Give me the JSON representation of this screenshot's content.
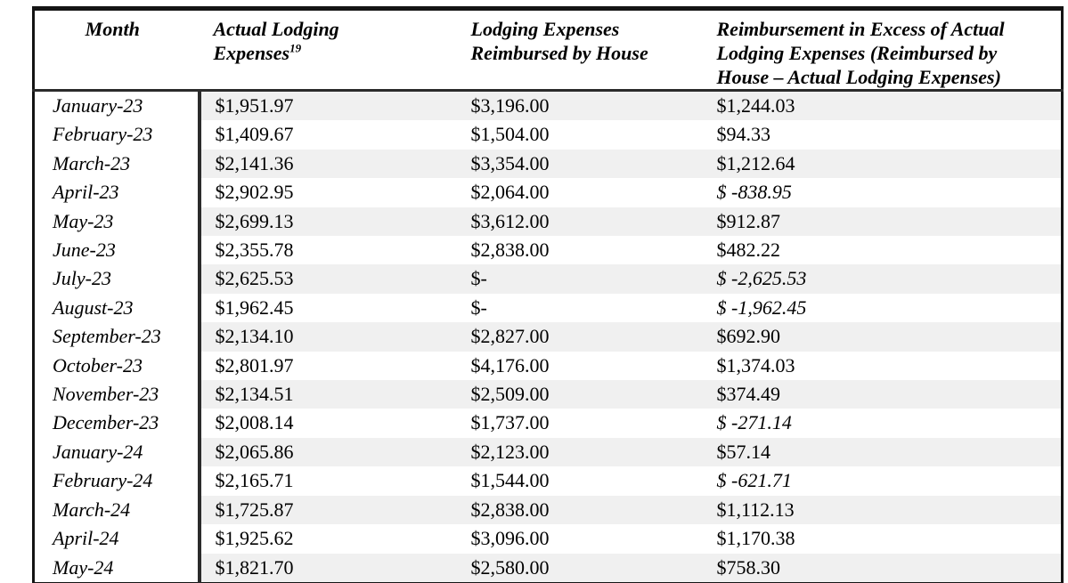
{
  "table": {
    "headers": [
      {
        "text": "Month"
      },
      {
        "text": "Actual Lodging\nExpenses",
        "footnote": "19"
      },
      {
        "text": "Lodging Expenses\nReimbursed by House"
      },
      {
        "text": "Reimbursement in Excess of Actual\nLodging Expenses (Reimbursed by\nHouse – Actual Lodging Expenses)"
      }
    ],
    "rows": [
      {
        "month": "January-23",
        "actual": "$1,951.97",
        "reimbursed": "$3,196.00",
        "excess": "$1,244.03",
        "excess_negative": false
      },
      {
        "month": "February-23",
        "actual": "$1,409.67",
        "reimbursed": "$1,504.00",
        "excess": "$94.33",
        "excess_negative": false
      },
      {
        "month": "March-23",
        "actual": "$2,141.36",
        "reimbursed": "$3,354.00",
        "excess": "$1,212.64",
        "excess_negative": false
      },
      {
        "month": "April-23",
        "actual": "$2,902.95",
        "reimbursed": "$2,064.00",
        "excess": "$ -838.95",
        "excess_negative": true
      },
      {
        "month": "May-23",
        "actual": "$2,699.13",
        "reimbursed": "$3,612.00",
        "excess": "$912.87",
        "excess_negative": false
      },
      {
        "month": "June-23",
        "actual": "$2,355.78",
        "reimbursed": "$2,838.00",
        "excess": "$482.22",
        "excess_negative": false
      },
      {
        "month": "July-23",
        "actual": "$2,625.53",
        "reimbursed": "$-",
        "excess": "$ -2,625.53",
        "excess_negative": true
      },
      {
        "month": "August-23",
        "actual": "$1,962.45",
        "reimbursed": "$-",
        "excess": "$ -1,962.45",
        "excess_negative": true
      },
      {
        "month": "September-23",
        "actual": "$2,134.10",
        "reimbursed": "$2,827.00",
        "excess": "$692.90",
        "excess_negative": false
      },
      {
        "month": "October-23",
        "actual": "$2,801.97",
        "reimbursed": "$4,176.00",
        "excess": "$1,374.03",
        "excess_negative": false
      },
      {
        "month": "November-23",
        "actual": "$2,134.51",
        "reimbursed": "$2,509.00",
        "excess": "$374.49",
        "excess_negative": false
      },
      {
        "month": "December-23",
        "actual": "$2,008.14",
        "reimbursed": "$1,737.00",
        "excess": "$ -271.14",
        "excess_negative": true
      },
      {
        "month": "January-24",
        "actual": "$2,065.86",
        "reimbursed": "$2,123.00",
        "excess": "$57.14",
        "excess_negative": false
      },
      {
        "month": "February-24",
        "actual": "$2,165.71",
        "reimbursed": "$1,544.00",
        "excess": "$ -621.71",
        "excess_negative": true
      },
      {
        "month": "March-24",
        "actual": "$1,725.87",
        "reimbursed": "$2,838.00",
        "excess": "$1,112.13",
        "excess_negative": false
      },
      {
        "month": "April-24",
        "actual": "$1,925.62",
        "reimbursed": "$3,096.00",
        "excess": "$1,170.38",
        "excess_negative": false
      },
      {
        "month": "May-24",
        "actual": "$1,821.70",
        "reimbursed": "$2,580.00",
        "excess": "$758.30",
        "excess_negative": false
      }
    ]
  },
  "colors": {
    "text": "#000000",
    "border": "#141414",
    "column_separator": "#2b2b2b",
    "row_stripe": "#f0f0f0",
    "background": "#ffffff"
  }
}
